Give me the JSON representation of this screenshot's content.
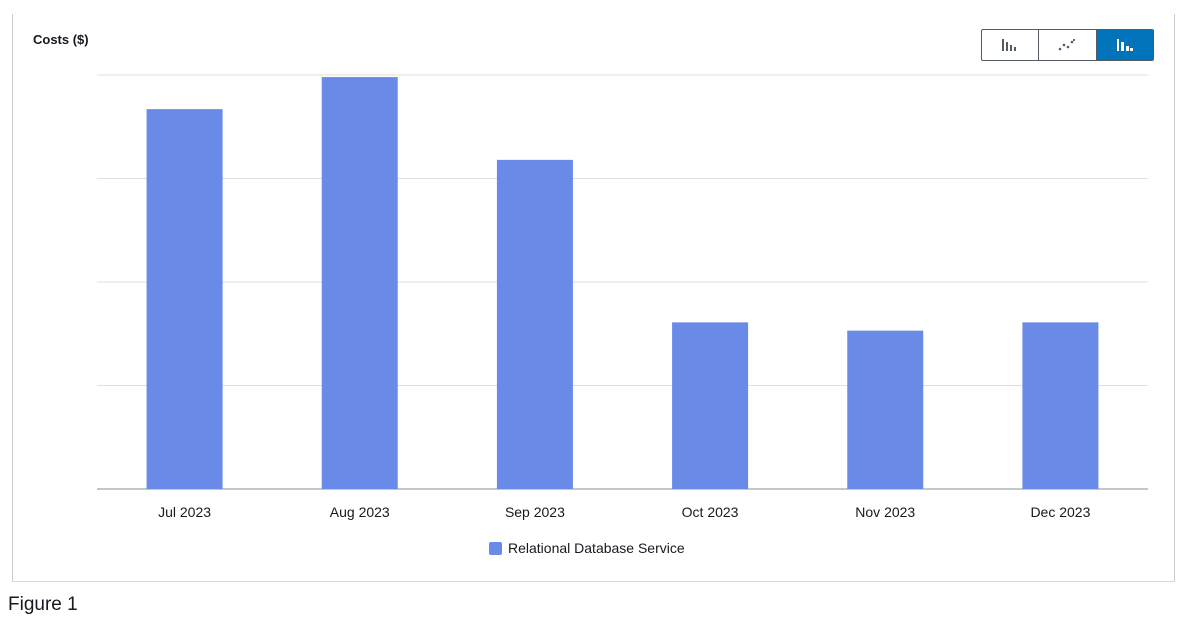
{
  "y_axis_title": "Costs ($)",
  "chart_controls": {
    "buttons": [
      {
        "icon": "bar-chart-icon",
        "active": false
      },
      {
        "icon": "line-chart-icon",
        "active": false
      },
      {
        "icon": "stacked-bar-chart-icon",
        "active": true
      }
    ]
  },
  "chart_data": {
    "type": "bar",
    "categories": [
      "Jul 2023",
      "Aug 2023",
      "Sep 2023",
      "Oct 2023",
      "Nov 2023",
      "Dec 2023"
    ],
    "series": [
      {
        "name": "Relational Database Service",
        "color": "#6a8ae8",
        "values": [
          3.67,
          3.98,
          3.18,
          1.61,
          1.53,
          1.61
        ]
      }
    ],
    "ylim": [
      0,
      4
    ],
    "grid": true,
    "legend_position": "bottom"
  },
  "caption": "Figure 1"
}
